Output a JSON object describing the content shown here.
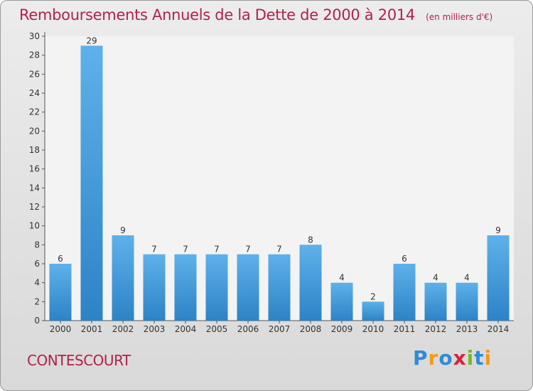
{
  "header": {
    "title": "Remboursements Annuels de la Dette de 2000 à 2014",
    "unit": "(en milliers d'€)"
  },
  "footer": {
    "commune": "CONTESCOURT",
    "brand_letters": [
      "P",
      "r",
      "o",
      "x",
      "i",
      "t",
      "i"
    ],
    "brand_colors": [
      "#2e8bd8",
      "#f29a1c",
      "#2e8bd8",
      "#d6243a",
      "#79b72e",
      "#2e8bd8",
      "#f29a1c"
    ]
  },
  "colors": {
    "accent": "#b0224a",
    "bar_light": "#5eb1ea",
    "bar_dark": "#2c83c6"
  },
  "chart_data": {
    "type": "bar",
    "title": "Remboursements Annuels de la Dette de 2000 à 2014",
    "categories": [
      "2000",
      "2001",
      "2002",
      "2003",
      "2004",
      "2005",
      "2006",
      "2007",
      "2008",
      "2009",
      "2010",
      "2011",
      "2012",
      "2013",
      "2014"
    ],
    "values": [
      6,
      29,
      9,
      7,
      7,
      7,
      7,
      7,
      8,
      4,
      2,
      6,
      4,
      4,
      9
    ],
    "ylim": [
      0,
      30
    ],
    "yticks": [
      0,
      2,
      4,
      6,
      8,
      10,
      12,
      14,
      16,
      18,
      20,
      22,
      24,
      26,
      28,
      30
    ],
    "grid": false,
    "legend": "none"
  }
}
